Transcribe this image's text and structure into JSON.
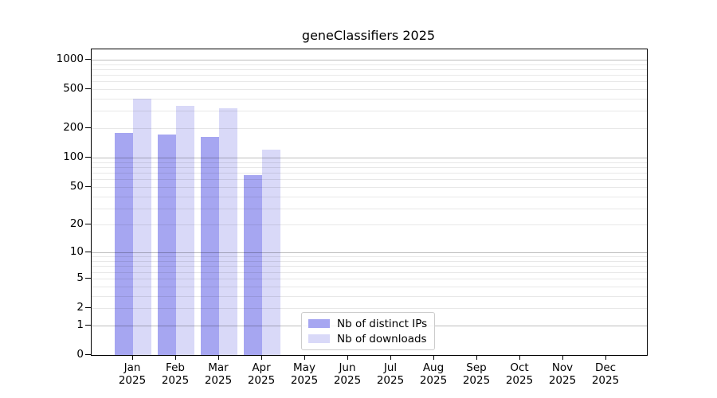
{
  "title": "geneClassifiers 2025",
  "chart_data": {
    "type": "bar",
    "title": "geneClassifiers 2025",
    "categories": [
      "Jan",
      "Feb",
      "Mar",
      "Apr",
      "May",
      "Jun",
      "Jul",
      "Aug",
      "Sep",
      "Oct",
      "Nov",
      "Dec"
    ],
    "year": "2025",
    "series": [
      {
        "name": "Nb of distinct IPs",
        "color": "#a6a6f1",
        "values": [
          178,
          174,
          162,
          66,
          null,
          null,
          null,
          null,
          null,
          null,
          null,
          null
        ]
      },
      {
        "name": "Nb of downloads",
        "color": "#d9d9f8",
        "values": [
          404,
          340,
          320,
          122,
          null,
          null,
          null,
          null,
          null,
          null,
          null,
          null
        ]
      }
    ],
    "xlabel": "",
    "ylabel": "",
    "yaxis": {
      "scale": "log10(1+y)",
      "ticks": [
        0,
        1,
        2,
        5,
        10,
        20,
        50,
        100,
        200,
        500,
        1000
      ],
      "range": [
        0,
        1271
      ],
      "major_gridlines": [
        1,
        10,
        100,
        1000
      ],
      "minor_gridline_decades": [
        1,
        10,
        100
      ],
      "grid": true
    },
    "legend_position": "lower-center-left"
  },
  "colors": {
    "background": "#ffffff",
    "spine": "#000000",
    "major_grid": "#bdbdbd",
    "minor_grid": "#e8e8e8",
    "text": "#000000",
    "legend_border": "#cccccc"
  }
}
